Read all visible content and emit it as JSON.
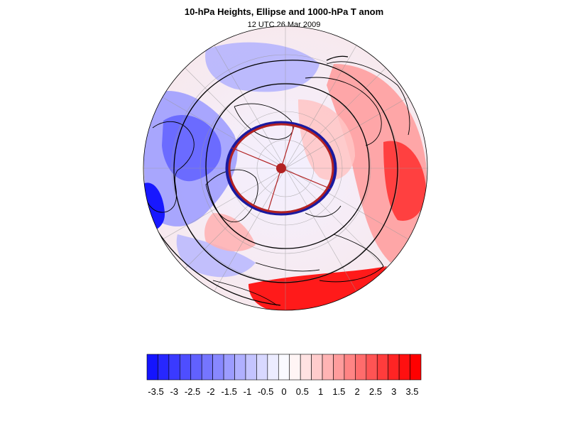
{
  "title": "10-hPa Heights, Ellipse and 1000-hPa T anom",
  "subtitle": "12 UTC 26 Mar 2009",
  "colorbar": {
    "colors": [
      "#1414ff",
      "#2727ff",
      "#3a3aff",
      "#4e4eff",
      "#6161ff",
      "#7575ff",
      "#8888ff",
      "#9c9cff",
      "#b0b0ff",
      "#c4c4ff",
      "#d8d8ff",
      "#ececff",
      "#fafaff",
      "#fff5f5",
      "#ffe2e2",
      "#ffcccc",
      "#ffb4b4",
      "#ff9c9c",
      "#ff8484",
      "#ff6c6c",
      "#ff5454",
      "#ff3c3c",
      "#ff2424",
      "#ff1010",
      "#ff0000"
    ],
    "tick_labels": [
      "-3.5",
      "-3",
      "-2.5",
      "-2",
      "-1.5",
      "-1",
      "-0.5",
      "0",
      "0.5",
      "1",
      "1.5",
      "2",
      "2.5",
      "3",
      "3.5"
    ]
  },
  "map": {
    "ellipse_colors": {
      "outer": "#1a1aa0",
      "inner": "#b22222"
    },
    "center_marker_color": "#b22222"
  }
}
